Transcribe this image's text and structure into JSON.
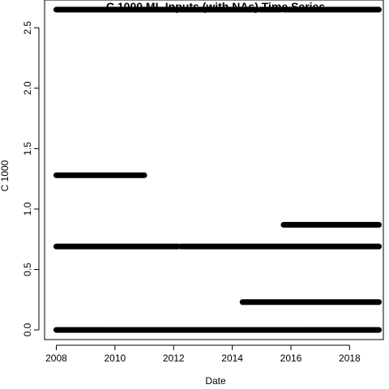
{
  "chart_data": {
    "type": "scatter",
    "title": "C 1000 ML Inputs (with NAs) Time Series",
    "xlabel": "Date",
    "ylabel": "C 1000",
    "xlim": [
      2007.6,
      2019.15
    ],
    "ylim": [
      -0.08,
      2.73
    ],
    "x_ticks": [
      2008,
      2010,
      2012,
      2014,
      2016,
      2018
    ],
    "x_tick_labels": [
      "2008",
      "2010",
      "2012",
      "2014",
      "2016",
      "2018"
    ],
    "y_ticks": [
      0.0,
      0.5,
      1.0,
      1.5,
      2.0,
      2.5
    ],
    "y_tick_labels": [
      "0.0",
      "0.5",
      "1.0",
      "1.5",
      "2.0",
      "2.5"
    ],
    "grid": false,
    "legend": "none",
    "marker_color": "#000000",
    "series": [
      {
        "points": "dense daily observations drawn as horizontal bands",
        "segments": [
          {
            "y": 2.65,
            "x_start": 2008.0,
            "x_end": 2014.85
          },
          {
            "y": 2.65,
            "x_start": 2014.95,
            "x_end": 2015.65
          },
          {
            "y": 2.65,
            "x_start": 2015.75,
            "x_end": 2019.0
          },
          {
            "y": 1.28,
            "x_start": 2008.0,
            "x_end": 2011.0
          },
          {
            "y": 0.87,
            "x_start": 2015.75,
            "x_end": 2019.0
          },
          {
            "y": 0.69,
            "x_start": 2008.0,
            "x_end": 2012.15
          },
          {
            "y": 0.69,
            "x_start": 2012.25,
            "x_end": 2019.0
          },
          {
            "y": 0.23,
            "x_start": 2014.35,
            "x_end": 2019.0
          },
          {
            "y": 0.0,
            "x_start": 2008.0,
            "x_end": 2019.0
          }
        ]
      }
    ]
  }
}
